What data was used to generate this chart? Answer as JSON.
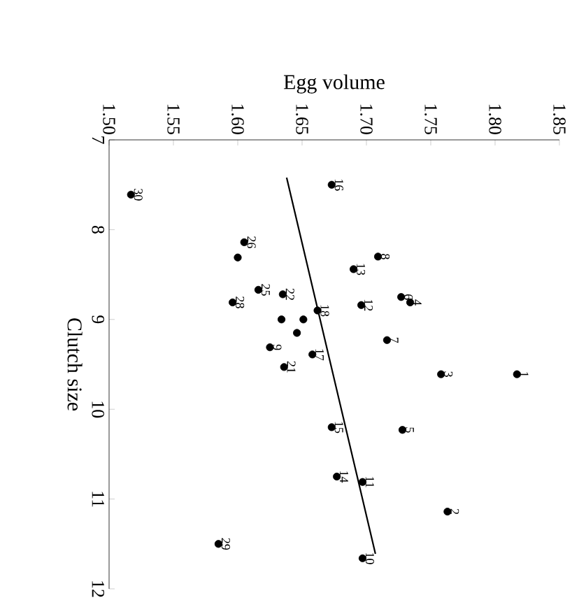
{
  "chart_data": {
    "type": "scatter",
    "xlabel": "Egg volume",
    "ylabel": "Clutch size",
    "xlim": [
      1.5,
      1.85
    ],
    "ylim": [
      12,
      7
    ],
    "xticks": [
      {
        "value": 1.5,
        "label": "1.50"
      },
      {
        "value": 1.55,
        "label": "1.55"
      },
      {
        "value": 1.6,
        "label": "1.60"
      },
      {
        "value": 1.65,
        "label": "1.65"
      },
      {
        "value": 1.7,
        "label": "1.70"
      },
      {
        "value": 1.75,
        "label": "1.75"
      },
      {
        "value": 1.8,
        "label": "1.80"
      },
      {
        "value": 1.85,
        "label": "1.85"
      }
    ],
    "yticks": [
      7,
      8,
      9,
      10,
      11,
      12
    ],
    "grid": false,
    "series": [
      {
        "color": "#000000",
        "marker": "circle",
        "x": [
          1.817,
          1.763,
          1.758,
          1.734,
          1.728,
          1.727,
          1.716,
          1.709,
          1.625,
          1.697,
          1.697,
          1.696,
          1.69,
          1.677,
          1.673,
          1.673,
          1.658,
          1.662,
          1.646,
          1.651,
          1.636,
          1.635,
          1.634,
          1.6,
          1.616,
          1.605,
          1.596,
          1.585,
          1.517
        ],
        "values": [
          9.61,
          11.14,
          9.61,
          8.81,
          10.23,
          8.75,
          9.23,
          8.3,
          9.31,
          11.66,
          10.81,
          8.84,
          8.44,
          10.75,
          10.2,
          7.5,
          9.39,
          8.9,
          9.15,
          9.0,
          9.53,
          8.72,
          9.0,
          8.31,
          8.67,
          8.14,
          8.81,
          11.5,
          7.61
        ]
      },
      {
        "type": "line",
        "color": "#000000",
        "marker": "none",
        "x": [
          1.638,
          1.707
        ],
        "values": [
          7.42,
          11.61
        ]
      }
    ],
    "annotations": [
      {
        "text": "1",
        "x": 1.817,
        "y": 9.61
      },
      {
        "text": "2",
        "x": 1.763,
        "y": 11.14
      },
      {
        "text": "3",
        "x": 1.758,
        "y": 9.61
      },
      {
        "text": "4",
        "x": 1.734,
        "y": 8.81
      },
      {
        "text": "5",
        "x": 1.728,
        "y": 10.23
      },
      {
        "text": "6",
        "x": 1.727,
        "y": 8.75
      },
      {
        "text": "7",
        "x": 1.716,
        "y": 9.23
      },
      {
        "text": "8",
        "x": 1.709,
        "y": 8.3
      },
      {
        "text": "9",
        "x": 1.625,
        "y": 9.31
      },
      {
        "text": "10",
        "x": 1.697,
        "y": 11.66
      },
      {
        "text": "11",
        "x": 1.697,
        "y": 10.81
      },
      {
        "text": "12",
        "x": 1.696,
        "y": 8.84
      },
      {
        "text": "13",
        "x": 1.69,
        "y": 8.44
      },
      {
        "text": "14",
        "x": 1.677,
        "y": 10.75
      },
      {
        "text": "15",
        "x": 1.673,
        "y": 10.2
      },
      {
        "text": "16",
        "x": 1.673,
        "y": 7.5
      },
      {
        "text": "17",
        "x": 1.658,
        "y": 9.39
      },
      {
        "text": "18",
        "x": 1.662,
        "y": 8.9
      },
      {
        "text": "21",
        "x": 1.636,
        "y": 9.53
      },
      {
        "text": "22",
        "x": 1.635,
        "y": 8.72
      },
      {
        "text": "25",
        "x": 1.616,
        "y": 8.67
      },
      {
        "text": "26",
        "x": 1.605,
        "y": 8.14
      },
      {
        "text": "28",
        "x": 1.596,
        "y": 8.81
      },
      {
        "text": "29",
        "x": 1.585,
        "y": 11.5
      },
      {
        "text": "30",
        "x": 1.517,
        "y": 7.61
      }
    ]
  }
}
